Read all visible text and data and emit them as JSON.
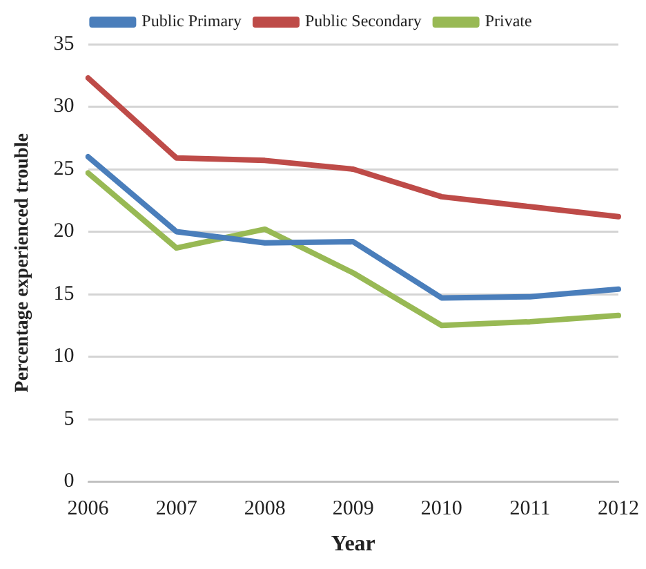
{
  "chart_data": {
    "type": "line",
    "xlabel": "Year",
    "ylabel": "Percentage experienced trouble",
    "categories": [
      "2006",
      "2007",
      "2008",
      "2009",
      "2010",
      "2011",
      "2012"
    ],
    "series": [
      {
        "name": "Public Primary",
        "color": "#4a7ebb",
        "values": [
          26.0,
          20.0,
          19.1,
          19.2,
          14.7,
          14.8,
          15.4
        ]
      },
      {
        "name": "Public Secondary",
        "color": "#be4b48",
        "values": [
          32.3,
          25.9,
          25.7,
          25.0,
          22.8,
          22.0,
          21.2
        ]
      },
      {
        "name": "Private",
        "color": "#98b954",
        "values": [
          24.7,
          18.7,
          20.2,
          16.7,
          12.5,
          12.8,
          13.3
        ]
      }
    ],
    "ylim": [
      0,
      35
    ],
    "yticks": [
      0,
      5,
      10,
      15,
      20,
      25,
      30,
      35
    ],
    "grid": "y",
    "legend": "top",
    "marker": "none",
    "line_style": "solid"
  }
}
